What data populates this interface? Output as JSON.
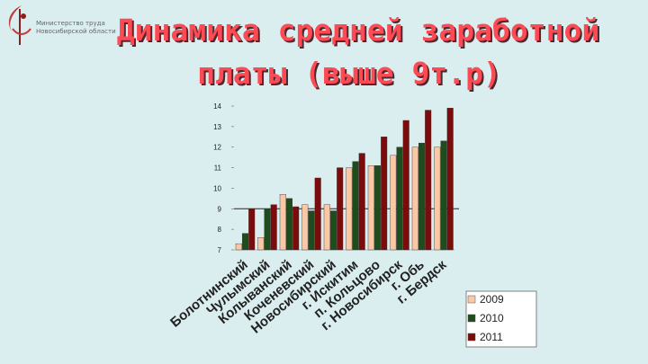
{
  "header": {
    "ministry_line1": "Министерство труда",
    "ministry_line2": "Новосибирской области",
    "title_line1": "Динамика средней заработной",
    "title_line2": "платы (выше 9т.р)"
  },
  "colors": {
    "background": "#daeef0",
    "title": "#ff4a54",
    "s2009": "#f9c9a6",
    "s2010": "#1d4d1d",
    "s2011": "#7a0c0c",
    "reference_line": "#222222"
  },
  "chart_data": {
    "type": "bar",
    "title": "",
    "xlabel": "",
    "ylabel": "",
    "ylim": [
      7,
      14
    ],
    "yticks": [
      7,
      8,
      9,
      10,
      11,
      12,
      13,
      14
    ],
    "reference_line": 9,
    "categories": [
      "Болотнинский",
      "Чулымский",
      "Колыванский",
      "Коченевский",
      "Новосибирский",
      "г. Искитим",
      "п. Кольцово",
      "г. Новосибирск",
      "г. Обь",
      "г. Бердск"
    ],
    "series": [
      {
        "name": "2009",
        "values": [
          7.3,
          7.6,
          9.7,
          9.2,
          9.2,
          11.0,
          11.1,
          11.6,
          12.0,
          12.0
        ]
      },
      {
        "name": "2010",
        "values": [
          7.8,
          9.0,
          9.5,
          8.9,
          8.9,
          11.3,
          11.1,
          12.0,
          12.2,
          12.3
        ]
      },
      {
        "name": "2011",
        "values": [
          9.0,
          9.2,
          9.1,
          10.5,
          11.0,
          11.7,
          12.5,
          13.3,
          13.8,
          13.9
        ]
      }
    ],
    "legend": {
      "position": "bottom-right",
      "labels": [
        "2009",
        "2010",
        "2011"
      ]
    }
  }
}
